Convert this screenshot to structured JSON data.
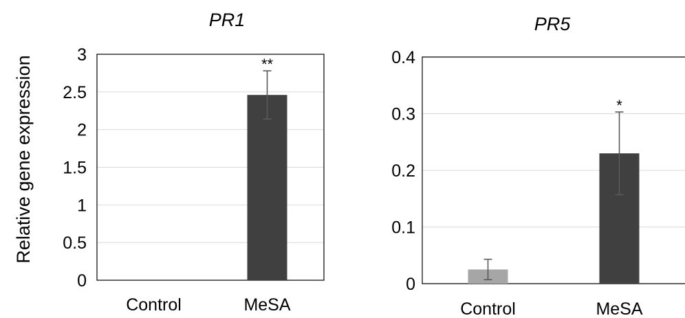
{
  "y_axis_label": "Relative gene expression",
  "chart_data": [
    {
      "type": "bar",
      "title": "PR1",
      "categories": [
        "Control",
        "MeSA"
      ],
      "values": [
        0.0,
        2.46
      ],
      "error": [
        0.0,
        0.32
      ],
      "significance": [
        "",
        "**"
      ],
      "bar_colors": [
        "#a6a6a6",
        "#404040"
      ],
      "ylim": [
        0,
        3
      ],
      "yticks": [
        0,
        0.5,
        1,
        1.5,
        2,
        2.5,
        3
      ],
      "ytick_labels": [
        "0",
        "0.5",
        "1",
        "1.5",
        "2",
        "2.5",
        "3"
      ],
      "ylabel": "Relative gene expression",
      "grid": true
    },
    {
      "type": "bar",
      "title": "PR5",
      "categories": [
        "Control",
        "MeSA"
      ],
      "values": [
        0.025,
        0.23
      ],
      "error": [
        0.018,
        0.073
      ],
      "significance": [
        "",
        "*"
      ],
      "bar_colors": [
        "#a6a6a6",
        "#404040"
      ],
      "ylim": [
        0,
        0.4
      ],
      "yticks": [
        0,
        0.1,
        0.2,
        0.3,
        0.4
      ],
      "ytick_labels": [
        "0",
        "0.1",
        "0.2",
        "0.3",
        "0.4"
      ],
      "grid": true
    }
  ]
}
